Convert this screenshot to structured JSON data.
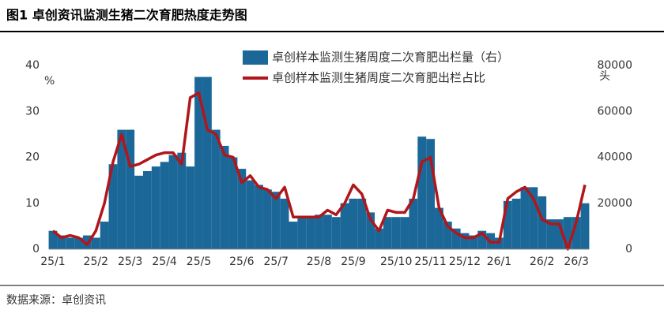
{
  "header": {
    "title": "图1 卓创资讯监测生猪二次育肥热度走势图"
  },
  "chart_data": {
    "type": "bar-line",
    "y_unit": "%",
    "y2_unit": "头",
    "categories": [
      "25/1",
      null,
      null,
      null,
      null,
      "25/2",
      null,
      null,
      null,
      "25/3",
      null,
      null,
      null,
      "25/4",
      null,
      null,
      null,
      "25/5",
      null,
      null,
      null,
      null,
      "25/6",
      null,
      null,
      null,
      "25/7",
      null,
      null,
      null,
      null,
      "25/8",
      null,
      null,
      null,
      "25/9",
      null,
      null,
      null,
      null,
      "25/10",
      null,
      null,
      null,
      "25/11",
      null,
      null,
      null,
      "25/12",
      null,
      null,
      null,
      "26/1",
      null,
      null,
      null,
      null,
      "26/2",
      null,
      null,
      null,
      "26/3",
      null
    ],
    "series": [
      {
        "name": "卓创样本监测生猪周度二次育肥出栏量（右）",
        "type": "bar",
        "axis": "y2",
        "color": "#1b6898",
        "values": [
          8000,
          6000,
          5000,
          5000,
          6000,
          5000,
          12000,
          37000,
          52000,
          52000,
          32000,
          34000,
          36000,
          38000,
          41000,
          42000,
          36000,
          75000,
          75000,
          52000,
          45000,
          40000,
          35000,
          30000,
          28000,
          26000,
          25000,
          22000,
          12000,
          14000,
          14000,
          15000,
          15000,
          14000,
          20000,
          22000,
          22000,
          16000,
          9000,
          14000,
          14000,
          14000,
          22000,
          49000,
          48000,
          18000,
          12000,
          9000,
          7000,
          6000,
          8000,
          7000,
          5000,
          21000,
          22000,
          27000,
          27000,
          23000,
          13000,
          13000,
          14000,
          14000,
          20000
        ]
      },
      {
        "name": "卓创样本监测生猪周度二次育肥出栏占比",
        "type": "line",
        "color": "#b0161b",
        "values": [
          4,
          2.5,
          3,
          2.5,
          1,
          4,
          10,
          19,
          25,
          18,
          18.5,
          19.5,
          20.5,
          21,
          21,
          18.5,
          33,
          34,
          26,
          25,
          20.5,
          20,
          14.5,
          16,
          13.5,
          13,
          11,
          13.5,
          7,
          7,
          7,
          7,
          8.5,
          7.5,
          10,
          14,
          12,
          6.5,
          4,
          8.5,
          8,
          8,
          11,
          19,
          20,
          9,
          5,
          3.5,
          2.5,
          2.5,
          3.5,
          1.5,
          1.5,
          11,
          12.5,
          13.5,
          11,
          6.5,
          5.5,
          5.5,
          0,
          6,
          14
        ]
      }
    ],
    "ylim": [
      0,
      40
    ],
    "yticks": [
      0,
      10,
      20,
      30,
      40
    ],
    "y2lim": [
      0,
      80000
    ],
    "y2ticks": [
      0,
      20000,
      40000,
      60000,
      80000
    ]
  },
  "footer": {
    "source": "数据来源：卓创资讯"
  }
}
